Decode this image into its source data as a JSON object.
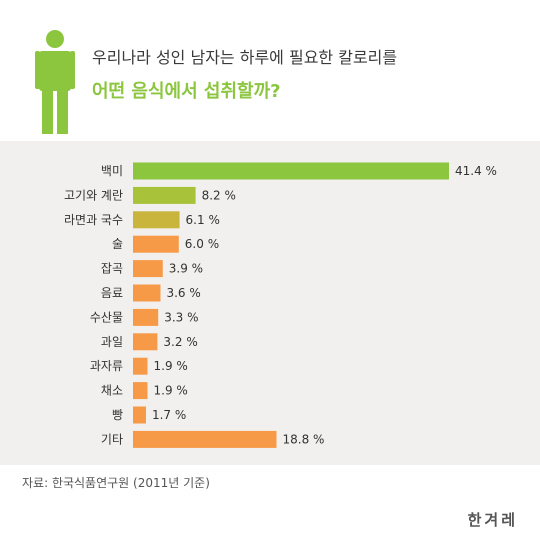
{
  "header": {
    "title_line1": "우리나라 성인 남자는 하루에 필요한 칼로리를",
    "title_line2": "어떤 음식에서 섭취할까?"
  },
  "chart_data": {
    "type": "bar",
    "orientation": "horizontal",
    "categories": [
      "백미",
      "고기와 계란",
      "라면과 국수",
      "술",
      "잡곡",
      "음료",
      "수산물",
      "과일",
      "과자류",
      "채소",
      "빵",
      "기타"
    ],
    "values": [
      41.4,
      8.2,
      6.1,
      6.0,
      3.9,
      3.6,
      3.3,
      3.2,
      1.9,
      1.9,
      1.7,
      18.8
    ],
    "value_labels": [
      "41.4 %",
      "8.2 %",
      "6.1 %",
      "6.0 %",
      "3.9 %",
      "3.6 %",
      "3.3 %",
      "3.2 %",
      "1.9 %",
      "1.9 %",
      "1.7 %",
      "18.8 %"
    ],
    "colors": [
      "#8cc63e",
      "#a8c23a",
      "#c9b43c",
      "#f79a48",
      "#f79a48",
      "#f79a48",
      "#f79a48",
      "#f79a48",
      "#f79a48",
      "#f79a48",
      "#f79a48",
      "#f79a48"
    ],
    "xlim": [
      0,
      41.4
    ],
    "grid": false,
    "legend": "none",
    "unit": "%"
  },
  "colors": {
    "accent_green": "#8cc63e",
    "bar_orange": "#f79a48",
    "chart_background": "#f1f0ee"
  },
  "icons": {
    "person": "person-icon"
  },
  "footer": {
    "source": "자료: 한국식품연구원 (2011년 기준)",
    "logo": "한겨레"
  }
}
